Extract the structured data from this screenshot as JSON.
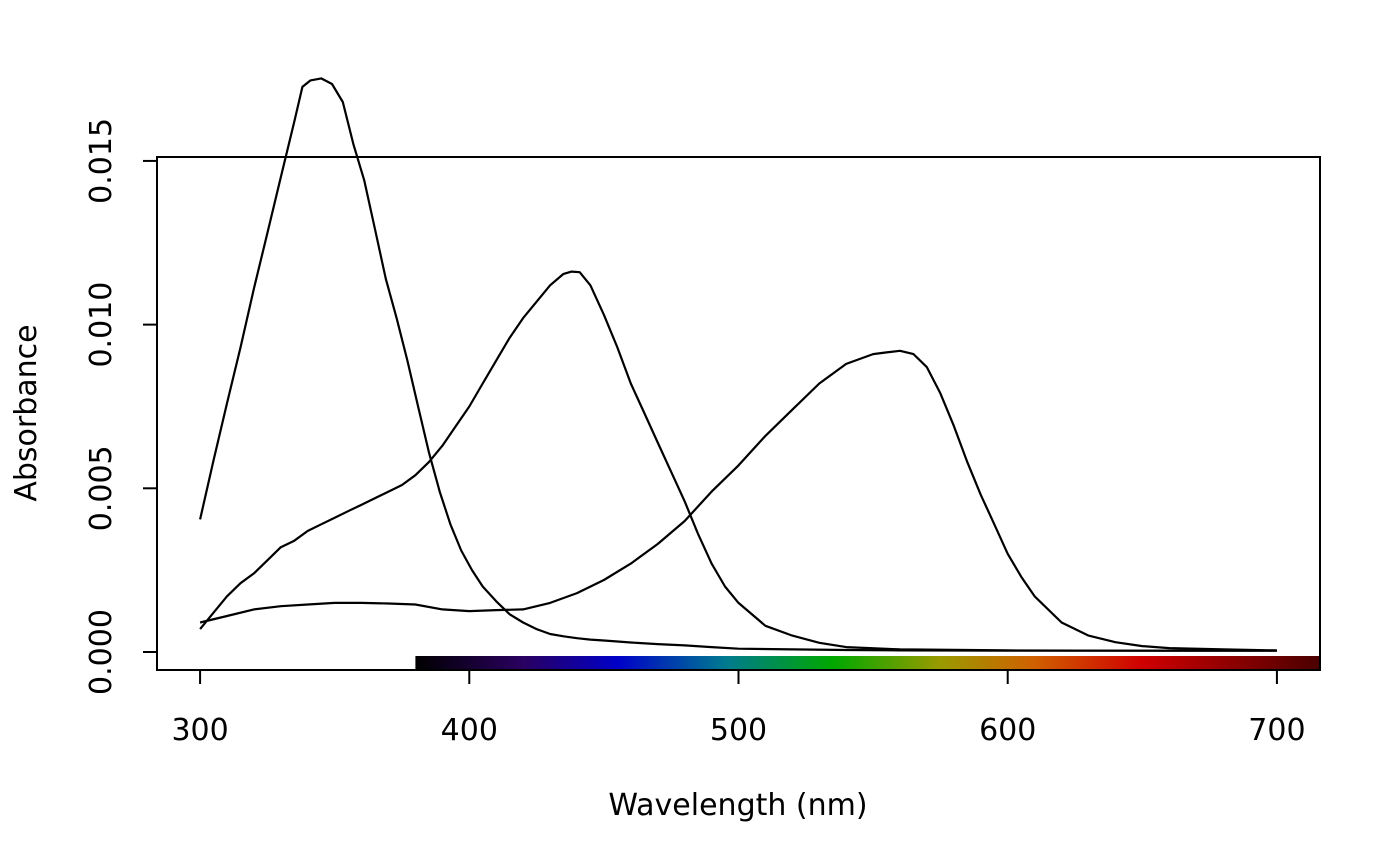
{
  "chart_data": {
    "type": "line",
    "title": "",
    "xlabel": "Wavelength (nm)",
    "ylabel": "Absorbance",
    "xlim": [
      284,
      716
    ],
    "ylim": [
      -0.00055,
      0.01512
    ],
    "x_ticks": [
      300,
      400,
      500,
      600,
      700
    ],
    "x_tick_labels": [
      "300",
      "400",
      "500",
      "600",
      "700"
    ],
    "y_ticks": [
      0.0,
      0.005,
      0.01,
      0.015
    ],
    "y_tick_labels": [
      "0.000",
      "0.005",
      "0.010",
      "0.015"
    ],
    "grid": false,
    "legend": false,
    "color_band": {
      "x_range": [
        380,
        716
      ],
      "stops": [
        {
          "wavelength": 380,
          "color": "#000000"
        },
        {
          "wavelength": 420,
          "color": "#2a0060"
        },
        {
          "wavelength": 455,
          "color": "#0000c8"
        },
        {
          "wavelength": 495,
          "color": "#007a90"
        },
        {
          "wavelength": 535,
          "color": "#00a800"
        },
        {
          "wavelength": 575,
          "color": "#9a9a00"
        },
        {
          "wavelength": 610,
          "color": "#d06000"
        },
        {
          "wavelength": 650,
          "color": "#d00000"
        },
        {
          "wavelength": 690,
          "color": "#800000"
        },
        {
          "wavelength": 716,
          "color": "#4a0000"
        }
      ]
    },
    "series": [
      {
        "x": [
          300,
          305,
          310,
          315,
          320,
          325,
          330,
          335,
          338,
          341,
          345,
          349,
          353,
          357,
          361,
          365,
          369,
          373,
          377,
          381,
          385,
          389,
          393,
          397,
          401,
          405,
          410,
          415,
          420,
          425,
          430,
          435,
          440,
          445,
          450,
          455,
          460,
          470,
          480,
          490,
          500,
          520,
          540,
          560,
          600,
          650,
          700
        ],
        "y": [
          0.00405,
          0.00585,
          0.0076,
          0.0093,
          0.0111,
          0.0128,
          0.0145,
          0.0162,
          0.01726,
          0.01746,
          0.01752,
          0.01735,
          0.0168,
          0.0155,
          0.0144,
          0.0129,
          0.0114,
          0.0102,
          0.0089,
          0.0075,
          0.0061,
          0.0049,
          0.0039,
          0.0031,
          0.0025,
          0.002,
          0.00155,
          0.00115,
          0.0009,
          0.0007,
          0.00055,
          0.00048,
          0.00042,
          0.00038,
          0.00035,
          0.00032,
          0.00029,
          0.00024,
          0.0002,
          0.00015,
          0.0001,
          8e-05,
          6e-05,
          5e-05,
          4e-05,
          4e-05,
          4e-05
        ]
      },
      {
        "x": [
          300,
          305,
          310,
          315,
          320,
          325,
          330,
          335,
          340,
          345,
          350,
          355,
          360,
          365,
          370,
          375,
          380,
          385,
          390,
          395,
          400,
          405,
          410,
          415,
          420,
          425,
          430,
          435,
          438,
          441,
          445,
          450,
          455,
          460,
          465,
          470,
          475,
          480,
          485,
          490,
          495,
          500,
          510,
          520,
          530,
          540,
          560,
          600,
          650,
          700
        ],
        "y": [
          0.0007,
          0.0012,
          0.0017,
          0.0021,
          0.0024,
          0.0028,
          0.0032,
          0.0034,
          0.0037,
          0.0039,
          0.0041,
          0.0043,
          0.0045,
          0.0047,
          0.0049,
          0.0051,
          0.0054,
          0.0058,
          0.0063,
          0.0069,
          0.0075,
          0.0082,
          0.0089,
          0.0096,
          0.0102,
          0.0107,
          0.0112,
          0.01155,
          0.01162,
          0.0116,
          0.0112,
          0.0103,
          0.0093,
          0.0082,
          0.0073,
          0.0064,
          0.0055,
          0.0046,
          0.0036,
          0.0027,
          0.002,
          0.0015,
          0.0008,
          0.0005,
          0.00028,
          0.00015,
          8e-05,
          5e-05,
          4e-05,
          4e-05
        ]
      },
      {
        "x": [
          300,
          310,
          320,
          330,
          340,
          350,
          360,
          370,
          380,
          390,
          400,
          410,
          420,
          430,
          440,
          450,
          460,
          470,
          480,
          490,
          500,
          510,
          520,
          530,
          540,
          550,
          555,
          560,
          565,
          570,
          575,
          580,
          585,
          590,
          595,
          600,
          605,
          610,
          620,
          630,
          640,
          650,
          660,
          680,
          700
        ],
        "y": [
          0.0009,
          0.0011,
          0.0013,
          0.0014,
          0.00145,
          0.0015,
          0.0015,
          0.00148,
          0.00145,
          0.0013,
          0.00125,
          0.00128,
          0.0013,
          0.0015,
          0.0018,
          0.0022,
          0.0027,
          0.0033,
          0.004,
          0.0049,
          0.0057,
          0.0066,
          0.0074,
          0.0082,
          0.0088,
          0.0091,
          0.00915,
          0.0092,
          0.0091,
          0.0087,
          0.0079,
          0.0069,
          0.0058,
          0.0048,
          0.0039,
          0.003,
          0.0023,
          0.0017,
          0.0009,
          0.0005,
          0.0003,
          0.00018,
          0.00012,
          8e-05,
          5e-05
        ]
      }
    ]
  }
}
